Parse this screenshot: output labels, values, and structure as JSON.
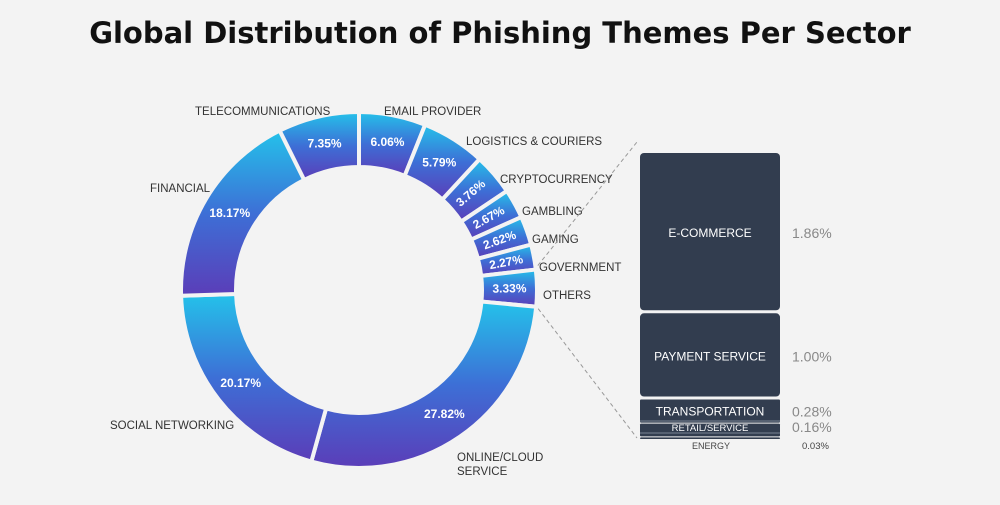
{
  "title": "Global Distribution of Phishing Themes Per Sector",
  "colors": {
    "gradient_start": "#24c2ea",
    "gradient_mid": "#3d6fd6",
    "gradient_end": "#5b3db8",
    "bar": "#323d4f",
    "bar_divider": "#7a8596"
  },
  "chart_data": [
    {
      "type": "pie",
      "style": "donut",
      "slices": [
        {
          "label": "EMAIL PROVIDER",
          "value": 6.06,
          "value_label": "6.06%"
        },
        {
          "label": "LOGISTICS & COURIERS",
          "value": 5.79,
          "value_label": "5.79%"
        },
        {
          "label": "CRYPTOCURRENCY",
          "value": 3.76,
          "value_label": "3.76%"
        },
        {
          "label": "GAMBLING",
          "value": 2.67,
          "value_label": "2.67%"
        },
        {
          "label": "GAMING",
          "value": 2.62,
          "value_label": "2.62%"
        },
        {
          "label": "GOVERNMENT",
          "value": 2.27,
          "value_label": "2.27%"
        },
        {
          "label": "OTHERS",
          "value": 3.33,
          "value_label": "3.33%"
        },
        {
          "label": "ONLINE/CLOUD SERVICE",
          "value": 27.82,
          "value_label": "27.82%"
        },
        {
          "label": "SOCIAL NETWORKING",
          "value": 20.17,
          "value_label": "20.17%"
        },
        {
          "label": "FINANCIAL",
          "value": 18.17,
          "value_label": "18.17%"
        },
        {
          "label": "TELECOMMUNICATIONS",
          "value": 7.35,
          "value_label": "7.35%"
        }
      ]
    },
    {
      "type": "bar",
      "style": "stacked-breakdown-of-others",
      "categories": [
        "E-COMMERCE",
        "PAYMENT SERVICE",
        "TRANSPORTATION",
        "RETAIL/SERVICE",
        "ENERGY"
      ],
      "values": [
        1.86,
        1.0,
        0.28,
        0.16,
        0.03
      ],
      "value_labels": [
        "1.86%",
        "1.00%",
        "0.28%",
        "0.16%",
        "0.03%"
      ]
    }
  ]
}
